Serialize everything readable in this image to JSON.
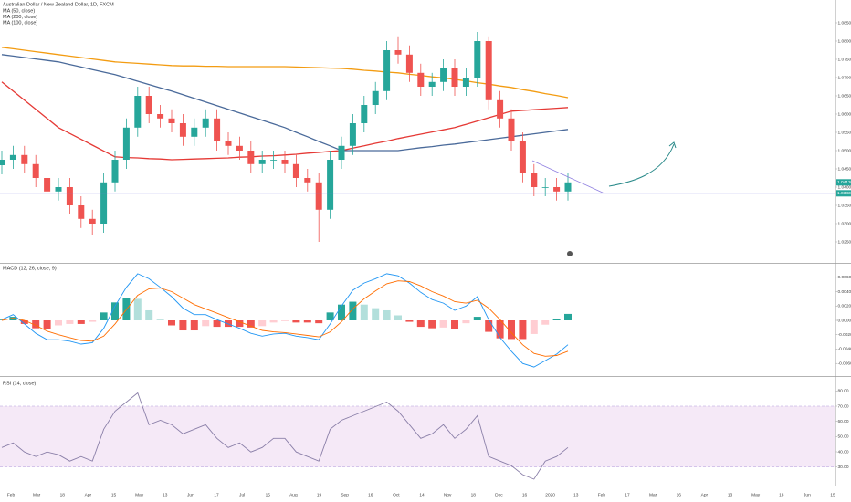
{
  "chart_data": [
    {
      "type": "candlestick",
      "title": "Australian Dollar / New Zealand Dollar, 1D, FXCM",
      "up_color": "#26a69a",
      "down_color": "#ef5350",
      "open": [
        1.046,
        1.0475,
        1.0488,
        1.0463,
        1.0425,
        1.0388,
        1.04,
        1.035,
        1.0313,
        1.03,
        1.0413,
        1.0475,
        1.0563,
        1.065,
        1.06,
        1.0588,
        1.0575,
        1.0538,
        1.0563,
        1.0588,
        1.0525,
        1.0513,
        1.05,
        1.0463,
        1.0475,
        1.0475,
        1.0463,
        1.0425,
        1.0413,
        1.0338,
        1.0475,
        1.0513,
        1.0575,
        1.0625,
        1.0663,
        1.0775,
        1.0763,
        1.0713,
        1.0675,
        1.0688,
        1.0725,
        1.0675,
        1.07,
        1.08,
        1.0638,
        1.0588,
        1.0525,
        1.0438,
        1.04,
        1.04,
        1.0388
      ],
      "high": [
        1.05,
        1.0513,
        1.0513,
        1.0488,
        1.045,
        1.0425,
        1.0425,
        1.0375,
        1.0338,
        1.0438,
        1.05,
        1.0588,
        1.0675,
        1.0675,
        1.0625,
        1.0613,
        1.06,
        1.0588,
        1.0613,
        1.0613,
        1.055,
        1.0538,
        1.0525,
        1.05,
        1.05,
        1.05,
        1.0488,
        1.045,
        1.0438,
        1.05,
        1.0538,
        1.06,
        1.065,
        1.0688,
        1.08,
        1.0813,
        1.0788,
        1.0738,
        1.0713,
        1.075,
        1.075,
        1.0725,
        1.0825,
        1.0813,
        1.0663,
        1.0613,
        1.055,
        1.0463,
        1.0425,
        1.0425,
        1.0438
      ],
      "low": [
        1.0435,
        1.045,
        1.0438,
        1.04,
        1.0363,
        1.0363,
        1.0325,
        1.0288,
        1.0268,
        1.0275,
        1.0388,
        1.045,
        1.0538,
        1.0575,
        1.0563,
        1.055,
        1.0513,
        1.0513,
        1.0538,
        1.05,
        1.0488,
        1.0475,
        1.0438,
        1.0438,
        1.045,
        1.0438,
        1.04,
        1.0388,
        1.025,
        1.0313,
        1.045,
        1.0488,
        1.055,
        1.06,
        1.0638,
        1.0738,
        1.0688,
        1.065,
        1.065,
        1.0663,
        1.065,
        1.065,
        1.0675,
        1.0613,
        1.0563,
        1.05,
        1.0413,
        1.0375,
        1.0375,
        1.0363,
        1.0363
      ],
      "close": [
        1.0475,
        1.0488,
        1.0463,
        1.0425,
        1.0388,
        1.04,
        1.035,
        1.0313,
        1.03,
        1.0413,
        1.0475,
        1.0563,
        1.065,
        1.06,
        1.0588,
        1.0575,
        1.0538,
        1.0563,
        1.0588,
        1.0525,
        1.0513,
        1.05,
        1.0463,
        1.0475,
        1.0475,
        1.0463,
        1.0425,
        1.0413,
        1.0338,
        1.0475,
        1.0513,
        1.0575,
        1.0625,
        1.0663,
        1.0775,
        1.0763,
        1.0713,
        1.0675,
        1.0688,
        1.0725,
        1.0675,
        1.07,
        1.08,
        1.0638,
        1.0588,
        1.0525,
        1.0438,
        1.04,
        1.04,
        1.0388,
        1.0413
      ],
      "series": [
        {
          "name": "MA (50, close)",
          "color": "#e53935",
          "values": [
            1.0688,
            1.0663,
            1.0638,
            1.0613,
            1.0588,
            1.0563,
            1.0547,
            1.0531,
            1.0515,
            1.0499,
            1.0483,
            1.0481,
            1.048,
            1.0478,
            1.0477,
            1.0475,
            1.0476,
            1.0477,
            1.0478,
            1.0479,
            1.048,
            1.0482,
            1.0483,
            1.0485,
            1.0486,
            1.0488,
            1.049,
            1.0493,
            1.0495,
            1.0498,
            1.05,
            1.0507,
            1.0513,
            1.052,
            1.0526,
            1.0533,
            1.0539,
            1.0545,
            1.0551,
            1.0557,
            1.0563,
            1.0572,
            1.0581,
            1.059,
            1.0599,
            1.0608,
            1.061,
            1.0612,
            1.0614,
            1.0616,
            1.0618
          ]
        },
        {
          "name": "MA (200, close)",
          "color": "#f39c12",
          "values": [
            1.0783,
            1.0779,
            1.0775,
            1.0771,
            1.0767,
            1.0763,
            1.0759,
            1.0755,
            1.0751,
            1.0747,
            1.0743,
            1.0741,
            1.0739,
            1.0737,
            1.0735,
            1.0733,
            1.0732,
            1.0732,
            1.0731,
            1.0731,
            1.073,
            1.073,
            1.073,
            1.073,
            1.073,
            1.073,
            1.0729,
            1.0728,
            1.0727,
            1.0726,
            1.0725,
            1.0723,
            1.072,
            1.0718,
            1.0715,
            1.0713,
            1.0709,
            1.0706,
            1.0702,
            1.0699,
            1.0695,
            1.0691,
            1.0686,
            1.0682,
            1.0677,
            1.0673,
            1.0667,
            1.0662,
            1.0656,
            1.0651,
            1.0645
          ]
        },
        {
          "name": "MA (100, close)",
          "color": "#4a6a9a",
          "values": [
            1.0763,
            1.0759,
            1.0755,
            1.0751,
            1.0747,
            1.0743,
            1.0736,
            1.0729,
            1.0722,
            1.0715,
            1.0708,
            1.0699,
            1.069,
            1.0681,
            1.0672,
            1.0663,
            1.0653,
            1.0643,
            1.0633,
            1.0623,
            1.0613,
            1.0603,
            1.0593,
            1.0583,
            1.0573,
            1.0563,
            1.055,
            1.0538,
            1.0525,
            1.0513,
            1.05,
            1.05,
            1.05,
            1.05,
            1.05,
            1.05,
            1.0504,
            1.0508,
            1.0511,
            1.0515,
            1.0518,
            1.0522,
            1.0526,
            1.053,
            1.0534,
            1.0538,
            1.0542,
            1.0546,
            1.055,
            1.0554,
            1.0558
          ]
        }
      ],
      "ylim": [
        1.02,
        1.09
      ],
      "yticks": [
        {
          "value": 1.025,
          "label": "1.02500"
        },
        {
          "value": 1.03,
          "label": "1.03000"
        },
        {
          "value": 1.035,
          "label": "1.03500"
        },
        {
          "value": 1.04,
          "label": "1.04000"
        },
        {
          "value": 1.045,
          "label": "1.04500"
        },
        {
          "value": 1.05,
          "label": "1.05000"
        },
        {
          "value": 1.055,
          "label": "1.05500"
        },
        {
          "value": 1.06,
          "label": "1.06000"
        },
        {
          "value": 1.065,
          "label": "1.06500"
        },
        {
          "value": 1.07,
          "label": "1.07000"
        },
        {
          "value": 1.075,
          "label": "1.07500"
        },
        {
          "value": 1.08,
          "label": "1.08000"
        },
        {
          "value": 1.085,
          "label": "1.08500"
        }
      ],
      "last_price": {
        "value": 1.0413,
        "label": "1.04130"
      },
      "hline": {
        "value": 1.0383,
        "label": "1.03830",
        "color": "#7e7ee0"
      }
    },
    {
      "type": "macd",
      "title": "MACD (12, 26, close, 9)",
      "histogram": [
        0.0001,
        0.0005,
        -0.0005,
        -0.0011,
        -0.0012,
        -0.0007,
        -0.0005,
        -0.0005,
        -0.0002,
        0.0011,
        0.0025,
        0.0031,
        0.003,
        0.0014,
        0.0001,
        -0.0007,
        -0.0014,
        -0.0014,
        -0.0008,
        -0.0009,
        -0.0009,
        -0.0009,
        -0.001,
        -0.0008,
        -0.0003,
        -0.0001,
        -0.0003,
        -0.0003,
        -0.0004,
        0.0011,
        0.0022,
        0.0026,
        0.0022,
        0.0017,
        0.0014,
        0.0007,
        -0.0002,
        -0.0009,
        -0.0011,
        -0.001,
        -0.0012,
        -0.0004,
        0.0005,
        -0.0016,
        -0.0025,
        -0.0026,
        -0.0026,
        -0.0019,
        -0.0006,
        0.0002,
        0.0009
      ],
      "histogram_colors": [
        "#26a69a",
        "#b2dfdb",
        "#ef5350",
        "#ffcdd2"
      ],
      "series": [
        {
          "name": "MACD",
          "color": "#2196f3",
          "values": [
            0.0001,
            0.0008,
            -0.0005,
            -0.0018,
            -0.0027,
            -0.0027,
            -0.0029,
            -0.0033,
            -0.0031,
            -0.0011,
            0.002,
            0.0046,
            0.0065,
            0.0058,
            0.0046,
            0.0033,
            0.0017,
            0.0008,
            0.0008,
            0.0001,
            -0.0005,
            -0.0011,
            -0.0018,
            -0.0022,
            -0.0019,
            -0.0018,
            -0.0022,
            -0.0024,
            -0.0027,
            -0.0005,
            0.002,
            0.0042,
            0.0052,
            0.0058,
            0.0065,
            0.0062,
            0.0052,
            0.0039,
            0.0029,
            0.0024,
            0.0014,
            0.002,
            0.0033,
            0.0001,
            -0.0024,
            -0.0043,
            -0.006,
            -0.0065,
            -0.0056,
            -0.0047,
            -0.0034
          ]
        },
        {
          "name": "Signal",
          "color": "#ff6d00",
          "values": [
            0.0,
            0.0003,
            0.0,
            -0.0007,
            -0.0015,
            -0.002,
            -0.0024,
            -0.0028,
            -0.0029,
            -0.0022,
            -0.0005,
            0.0015,
            0.0035,
            0.0044,
            0.0045,
            0.004,
            0.0031,
            0.0022,
            0.0016,
            0.001,
            0.0004,
            -0.0002,
            -0.0008,
            -0.0014,
            -0.0016,
            -0.0017,
            -0.0019,
            -0.0021,
            -0.0023,
            -0.0016,
            -0.0002,
            0.0016,
            0.003,
            0.0041,
            0.0051,
            0.0055,
            0.0054,
            0.0048,
            0.004,
            0.0034,
            0.0026,
            0.0024,
            0.0028,
            0.0017,
            0.0001,
            -0.0017,
            -0.0034,
            -0.0046,
            -0.005,
            -0.0049,
            -0.0043
          ]
        }
      ],
      "ylim": [
        -0.0075,
        0.0075
      ],
      "yticks": [
        {
          "value": -0.006,
          "label": "-0.00600"
        },
        {
          "value": -0.004,
          "label": "-0.00400"
        },
        {
          "value": -0.002,
          "label": "-0.00200"
        },
        {
          "value": 0,
          "label": "0.00000"
        },
        {
          "value": 0.002,
          "label": "0.00200"
        },
        {
          "value": 0.004,
          "label": "0.00400"
        },
        {
          "value": 0.006,
          "label": "0.00600"
        }
      ]
    },
    {
      "type": "line",
      "title": "RSI (14, close)",
      "color": "#8a7fa8",
      "values": [
        42.8,
        45.8,
        39.9,
        36.9,
        39.9,
        38.1,
        33.9,
        36.9,
        33.9,
        54.8,
        66.7,
        72.7,
        78.7,
        57.8,
        60.7,
        57.8,
        51.8,
        54.8,
        57.8,
        48.8,
        42.8,
        45.8,
        39.9,
        42.8,
        48.8,
        48.8,
        39.9,
        36.9,
        33.9,
        54.8,
        60.7,
        63.7,
        66.7,
        69.7,
        72.7,
        66.7,
        57.8,
        48.8,
        51.8,
        57.8,
        48.8,
        54.8,
        63.7,
        36.9,
        33.9,
        30.9,
        25.0,
        22.0,
        33.9,
        36.9,
        42.8
      ],
      "band": [
        30,
        70
      ],
      "band_color": "#9c27b0",
      "ylim": [
        19,
        88
      ],
      "yticks": [
        {
          "value": 30,
          "label": "30.00"
        },
        {
          "value": 40,
          "label": "40.00"
        },
        {
          "value": 50,
          "label": "50.00"
        },
        {
          "value": 60,
          "label": "60.00"
        },
        {
          "value": 70,
          "label": "70.00"
        },
        {
          "value": 80,
          "label": "80.00"
        }
      ],
      "x_labels": [
        "Feb",
        "Mar",
        "18",
        "Apr",
        "15",
        "May",
        "13",
        "Jun",
        "17",
        "Jul",
        "15",
        "Aug",
        "19",
        "Sep",
        "16",
        "Oct",
        "14",
        "Nov",
        "18",
        "Dec",
        "16",
        "2020",
        "13",
        "Feb",
        "17",
        "Mar",
        "16",
        "Apr",
        "13",
        "May",
        "18",
        "Jun",
        "15"
      ]
    }
  ]
}
